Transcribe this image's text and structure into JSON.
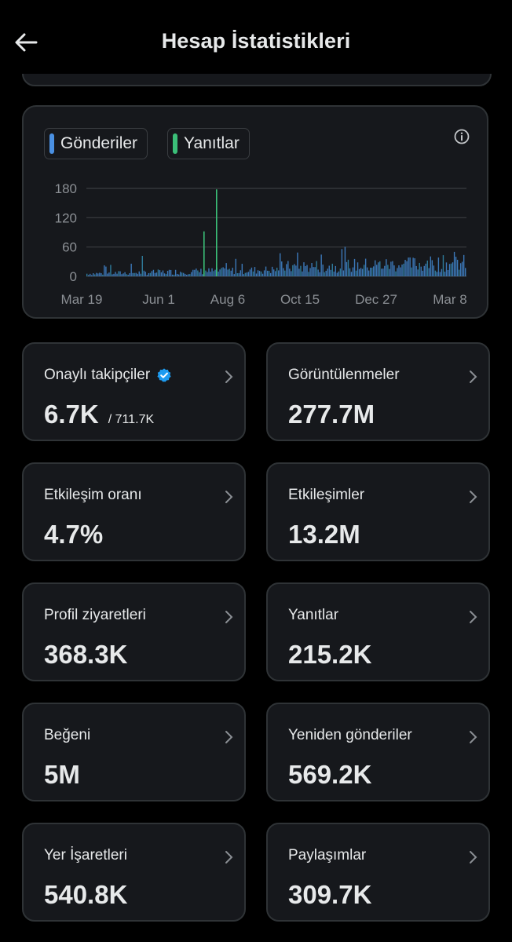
{
  "header": {
    "title": "Hesap İstatistikleri"
  },
  "chart_data": {
    "type": "bar",
    "legend": [
      {
        "label": "Gönderiler",
        "color": "#4a90e2"
      },
      {
        "label": "Yanıtlar",
        "color": "#3bbf78"
      }
    ],
    "y_ticks": [
      "180",
      "120",
      "60",
      "0"
    ],
    "x_ticks": [
      "Mar 19",
      "Jun 1",
      "Aug 6",
      "Oct 15",
      "Dec 27",
      "Mar 8"
    ],
    "ylim": [
      0,
      180
    ],
    "grid": true,
    "spikes": [
      {
        "series": "Yanıtlar",
        "near": "Aug 6",
        "value": 178
      },
      {
        "series": "Yanıtlar",
        "near": "Aug 6",
        "value": 92
      }
    ]
  },
  "metrics": [
    {
      "label": "Onaylı takipçiler",
      "value": "6.7K",
      "sub": "/ 711.7K",
      "verified": true
    },
    {
      "label": "Görüntülenmeler",
      "value": "277.7M"
    },
    {
      "label": "Etkileşim oranı",
      "value": "4.7%"
    },
    {
      "label": "Etkileşimler",
      "value": "13.2M"
    },
    {
      "label": "Profil ziyaretleri",
      "value": "368.3K"
    },
    {
      "label": "Yanıtlar",
      "value": "215.2K"
    },
    {
      "label": "Beğeni",
      "value": "5M"
    },
    {
      "label": "Yeniden gönderiler",
      "value": "569.2K"
    },
    {
      "label": "Yer İşaretleri",
      "value": "540.8K"
    },
    {
      "label": "Paylaşımlar",
      "value": "309.7K"
    }
  ]
}
